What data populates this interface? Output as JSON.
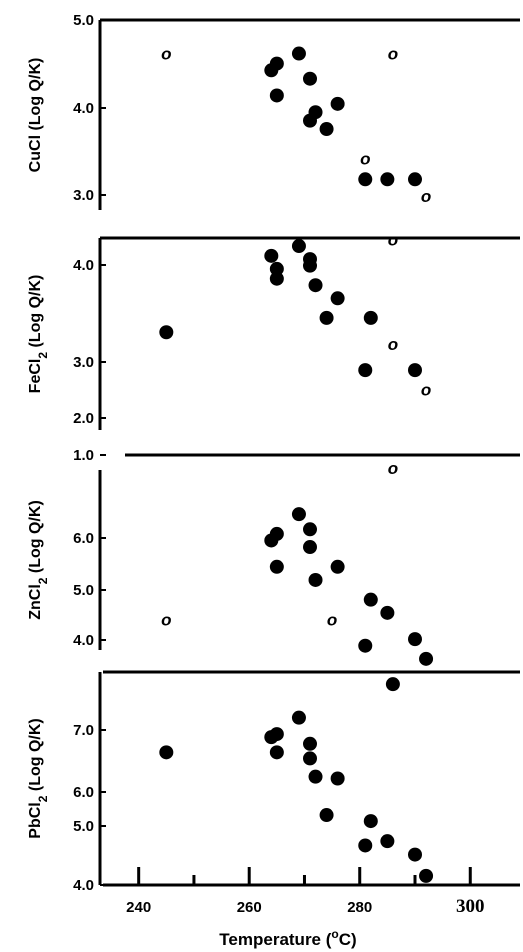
{
  "chart_data": [
    {
      "type": "scatter",
      "ylabel_parts": [
        "CuCl (Log Q/K)"
      ],
      "y_ticks": [
        "5.0",
        "4.0",
        "3.0"
      ],
      "ylim": [
        2.4,
        5.0
      ],
      "filled": [
        [
          264,
          4.4
        ],
        [
          265,
          4.48
        ],
        [
          265,
          4.1
        ],
        [
          269,
          4.6
        ],
        [
          271,
          4.3
        ],
        [
          272,
          3.9
        ],
        [
          271,
          3.8
        ],
        [
          274,
          3.7
        ],
        [
          276,
          4.0
        ],
        [
          281,
          3.1
        ],
        [
          285,
          3.1
        ],
        [
          290,
          3.1
        ]
      ],
      "open": [
        [
          245,
          4.6
        ],
        [
          286,
          4.6
        ],
        [
          281,
          3.35
        ],
        [
          292,
          2.9
        ]
      ],
      "open_label": "o"
    },
    {
      "type": "scatter",
      "ylabel_parts": [
        "FeCl",
        "2",
        " (Log Q/K)"
      ],
      "y_ticks": [
        "4.0",
        "3.0",
        "2.0",
        "1.0"
      ],
      "ylim": [
        1.0,
        4.4
      ],
      "filled": [
        [
          245,
          2.88
        ],
        [
          264,
          4.05
        ],
        [
          265,
          3.85
        ],
        [
          265,
          3.7
        ],
        [
          269,
          4.2
        ],
        [
          271,
          3.9
        ],
        [
          271,
          4.0
        ],
        [
          272,
          3.6
        ],
        [
          274,
          3.1
        ],
        [
          276,
          3.4
        ],
        [
          282,
          3.1
        ],
        [
          281,
          2.3
        ],
        [
          290,
          2.3
        ]
      ],
      "open": [
        [
          286,
          4.3
        ],
        [
          286,
          2.7
        ],
        [
          292,
          2.0
        ]
      ],
      "open_label": "o"
    },
    {
      "type": "scatter",
      "ylabel_parts": [
        "ZnCl",
        "2",
        " (Log Q/K)"
      ],
      "y_ticks": [
        "6.0",
        "5.0",
        "4.0"
      ],
      "ylim": [
        3.8,
        7.1
      ],
      "filled": [
        [
          264,
          5.8
        ],
        [
          265,
          5.9
        ],
        [
          265,
          5.4
        ],
        [
          269,
          6.2
        ],
        [
          271,
          5.97
        ],
        [
          271,
          5.7
        ],
        [
          272,
          5.2
        ],
        [
          276,
          5.4
        ],
        [
          282,
          4.9
        ],
        [
          285,
          4.7
        ],
        [
          281,
          4.2
        ],
        [
          290,
          4.3
        ],
        [
          292,
          4.0
        ]
      ],
      "open": [
        [
          245,
          4.6
        ],
        [
          275,
          4.6
        ],
        [
          286,
          6.9
        ]
      ],
      "open_label": "o"
    },
    {
      "type": "scatter",
      "ylabel_parts": [
        "PbCl",
        "2",
        " (Log Q/K)"
      ],
      "y_ticks": [
        "7.0",
        "6.0",
        "5.0",
        "4.0"
      ],
      "ylim": [
        4.0,
        7.5
      ],
      "filled": [
        [
          245,
          6.18
        ],
        [
          264,
          6.43
        ],
        [
          265,
          6.48
        ],
        [
          265,
          6.18
        ],
        [
          269,
          6.75
        ],
        [
          271,
          6.32
        ],
        [
          271,
          6.08
        ],
        [
          272,
          5.78
        ],
        [
          274,
          5.15
        ],
        [
          276,
          5.75
        ],
        [
          282,
          5.05
        ],
        [
          285,
          4.72
        ],
        [
          281,
          4.65
        ],
        [
          290,
          4.5
        ],
        [
          292,
          4.15
        ],
        [
          286,
          7.3
        ]
      ],
      "open": []
    }
  ],
  "x_axis": {
    "xlabel_main": "Temperature (",
    "xlabel_super": "o",
    "xlabel_unit": "C)",
    "ticks": [
      {
        "value": 240,
        "label": "240"
      },
      {
        "value": 260,
        "label": "260"
      },
      {
        "value": 280,
        "label": "280"
      },
      {
        "value": 300,
        "label": "300"
      }
    ],
    "minor_ticks": [
      250,
      270,
      290
    ],
    "xlim": [
      233,
      309
    ]
  }
}
